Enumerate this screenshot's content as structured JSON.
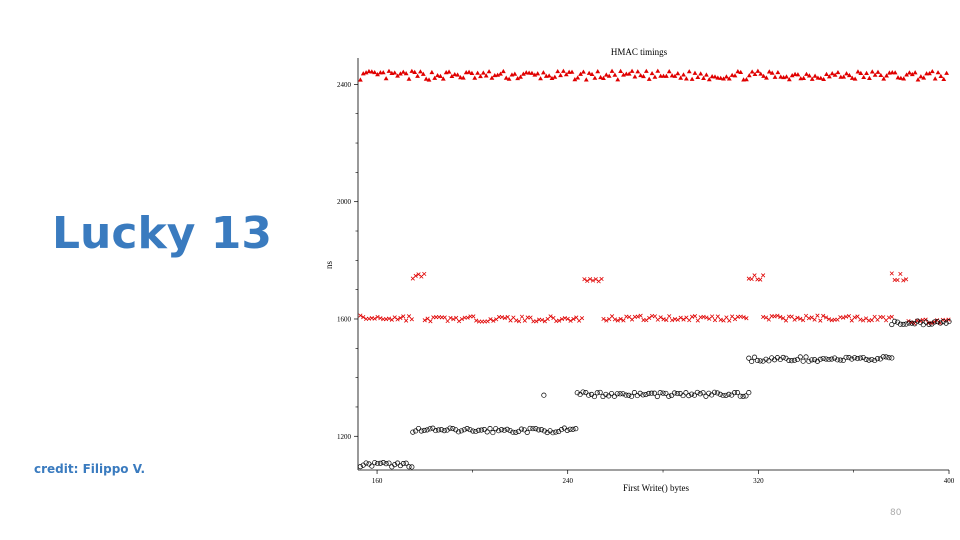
{
  "slide": {
    "title": "Lucky 13",
    "credit": "credit: Filippo V.",
    "page_number": "80"
  },
  "chart_data": {
    "type": "scatter",
    "title": "HMAC timings",
    "xlabel": "First Write() bytes",
    "ylabel": "ns",
    "xlim": [
      152,
      400
    ],
    "ylim": [
      1085,
      2490
    ],
    "x_ticks": [
      160,
      240,
      320,
      400
    ],
    "y_ticks": [
      1200,
      1600,
      2000,
      2400
    ],
    "grid": false,
    "series": [
      {
        "marker": "triangle",
        "color": "#e00000",
        "segments": [
          {
            "x_start": 153,
            "x_end": 399,
            "y": 2430,
            "jitter": 15
          }
        ]
      },
      {
        "marker": "cross",
        "color": "#e00000",
        "segments": [
          {
            "x_start": 153,
            "x_end": 175,
            "y": 1603,
            "jitter": 9
          },
          {
            "x_start": 175,
            "x_end": 180,
            "y": 1742,
            "jitter": 14
          },
          {
            "x_start": 180,
            "x_end": 247,
            "y": 1600,
            "jitter": 9
          },
          {
            "x_start": 247,
            "x_end": 255,
            "y": 1733,
            "jitter": 5
          },
          {
            "x_start": 255,
            "x_end": 316,
            "y": 1603,
            "jitter": 9
          },
          {
            "x_start": 316,
            "x_end": 322,
            "y": 1740,
            "jitter": 9
          },
          {
            "x_start": 322,
            "x_end": 376,
            "y": 1603,
            "jitter": 9
          },
          {
            "x_start": 376,
            "x_end": 383,
            "y": 1745,
            "jitter": 14
          },
          {
            "x_start": 383,
            "x_end": 400,
            "y": 1592,
            "jitter": 7
          }
        ]
      },
      {
        "marker": "circle",
        "color": "#000000",
        "segments": [
          {
            "x_start": 153,
            "x_end": 175,
            "y": 1103,
            "jitter": 8
          },
          {
            "x_start": 175,
            "x_end": 244,
            "y": 1220,
            "jitter": 8
          },
          {
            "x_start": 244,
            "x_end": 316,
            "y": 1343,
            "jitter": 8
          },
          {
            "x_start": 316,
            "x_end": 376,
            "y": 1463,
            "jitter": 8
          },
          {
            "x_start": 376,
            "x_end": 400,
            "y": 1587,
            "jitter": 7
          }
        ],
        "outliers": [
          {
            "x": 230,
            "y": 1340
          }
        ]
      }
    ]
  }
}
